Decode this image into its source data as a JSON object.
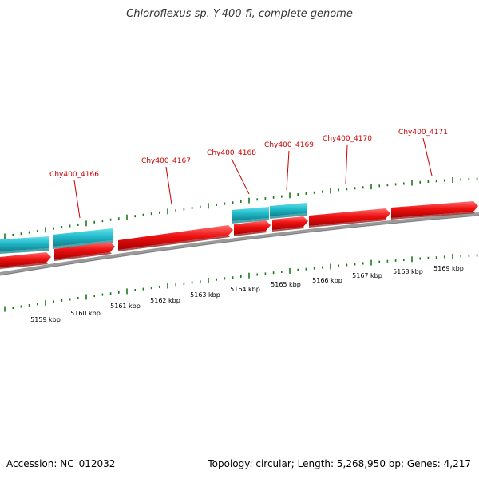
{
  "title": "Chloroflexus sp. Y-400-fl, complete genome",
  "footer": {
    "accession": "Accession: NC_012032",
    "summary": "Topology: circular; Length: 5,268,950 bp; Genes: 4,217"
  },
  "colors": {
    "forward_gene": "#ee1111",
    "reverse_gene": "#22bbcc",
    "backbone": "#888888",
    "tick": "#1b7a1b",
    "label": "#cc0000"
  },
  "gene_labels": [
    "Chy400_4166",
    "Chy400_4167",
    "Chy400_4168",
    "Chy400_4169",
    "Chy400_4170",
    "Chy400_4171"
  ],
  "scale_labels": [
    "5159 kbp",
    "5160 kbp",
    "5161 kbp",
    "5162 kbp",
    "5163 kbp",
    "5164 kbp",
    "5165 kbp",
    "5166 kbp",
    "5167 kbp",
    "5168 kbp",
    "5169 kbp"
  ]
}
